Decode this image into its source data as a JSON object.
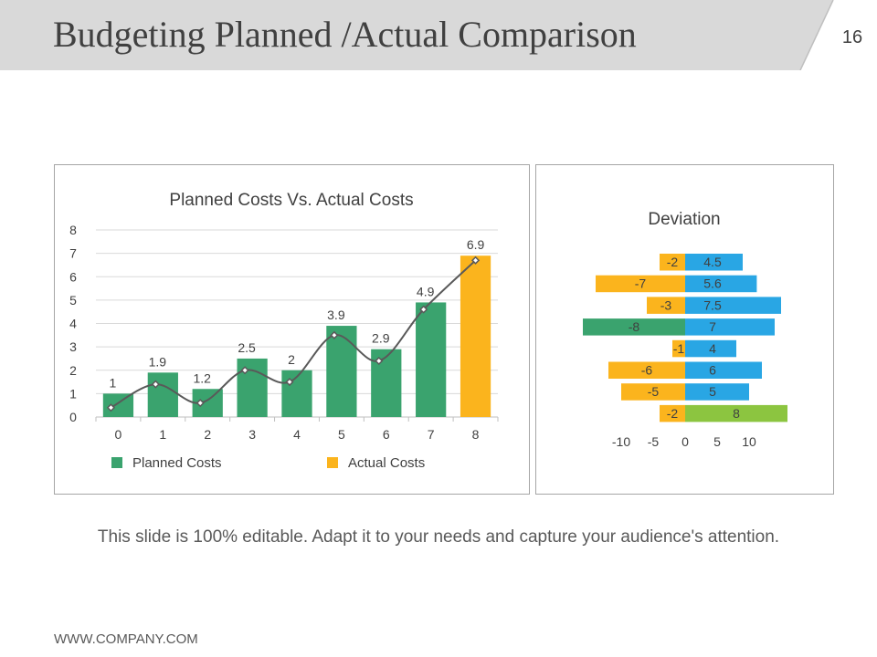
{
  "slide": {
    "title": "Budgeting Planned /Actual Comparison",
    "page_number": "16",
    "caption": "This slide is 100% editable. Adapt it to your needs and capture your audience's attention.",
    "footer": "WWW.COMPANY.COM"
  },
  "colors": {
    "header_bg": "#d9d9d9",
    "green": "#3aa36e",
    "orange": "#fbb41d",
    "blue": "#29a6e4",
    "dark_green": "#3aa36e",
    "light_green": "#8cc540",
    "line": "#595959",
    "grid": "#d9d9d9"
  },
  "chart_data": [
    {
      "type": "bar",
      "title": "Planned Costs Vs. Actual Costs",
      "categories": [
        "0",
        "1",
        "2",
        "3",
        "4",
        "5",
        "6",
        "7",
        "8"
      ],
      "series": [
        {
          "name": "Planned Costs",
          "values": [
            1,
            1.9,
            1.2,
            2.5,
            2,
            3.9,
            2.9,
            4.9,
            null
          ],
          "color": "#3aa36e"
        },
        {
          "name": "Actual Costs",
          "values": [
            null,
            null,
            null,
            null,
            null,
            null,
            null,
            null,
            6.9
          ],
          "color": "#fbb41d"
        }
      ],
      "data_labels": [
        "1",
        "1.9",
        "1.2",
        "2.5",
        "2",
        "3.9",
        "2.9",
        "4.9",
        "6.9"
      ],
      "trend_line": {
        "type": "line",
        "smooth": true,
        "values": [
          0.4,
          1.4,
          0.6,
          2,
          1.5,
          3.5,
          2.4,
          4.6,
          6.7
        ]
      },
      "ylim": [
        0,
        8
      ],
      "yticks": [
        "0",
        "1",
        "2",
        "3",
        "4",
        "5",
        "6",
        "7",
        "8"
      ],
      "grid": true,
      "legend_position": "bottom"
    },
    {
      "type": "bar",
      "orientation": "horizontal",
      "title": "Deviation",
      "rows": [
        {
          "negative": -2,
          "negative_label": "-2",
          "positive": 4.5,
          "positive_label": "4.5",
          "negative_color": "#fbb41d",
          "positive_color": "#29a6e4"
        },
        {
          "negative": -7,
          "negative_label": "-7",
          "positive": 5.6,
          "positive_label": "5.6",
          "negative_color": "#fbb41d",
          "positive_color": "#29a6e4"
        },
        {
          "negative": -3,
          "negative_label": "-3",
          "positive": 7.5,
          "positive_label": "7.5",
          "negative_color": "#fbb41d",
          "positive_color": "#29a6e4"
        },
        {
          "negative": -8,
          "negative_label": "-8",
          "positive": 7,
          "positive_label": "7",
          "negative_color": "#3aa36e",
          "positive_color": "#29a6e4"
        },
        {
          "negative": -1,
          "negative_label": "-1",
          "positive": 4,
          "positive_label": "4",
          "negative_color": "#fbb41d",
          "positive_color": "#29a6e4"
        },
        {
          "negative": -6,
          "negative_label": "-6",
          "positive": 6,
          "positive_label": "6",
          "negative_color": "#fbb41d",
          "positive_color": "#29a6e4"
        },
        {
          "negative": -5,
          "negative_label": "-5",
          "positive": 5,
          "positive_label": "5",
          "negative_color": "#fbb41d",
          "positive_color": "#29a6e4"
        },
        {
          "negative": -2,
          "negative_label": "-2",
          "positive": 8,
          "positive_label": "8",
          "negative_color": "#fbb41d",
          "positive_color": "#8cc540"
        }
      ],
      "xlim": [
        -10,
        10
      ],
      "xticks": [
        "-10",
        "-5",
        "0",
        "5",
        "10"
      ],
      "grid": false
    }
  ]
}
